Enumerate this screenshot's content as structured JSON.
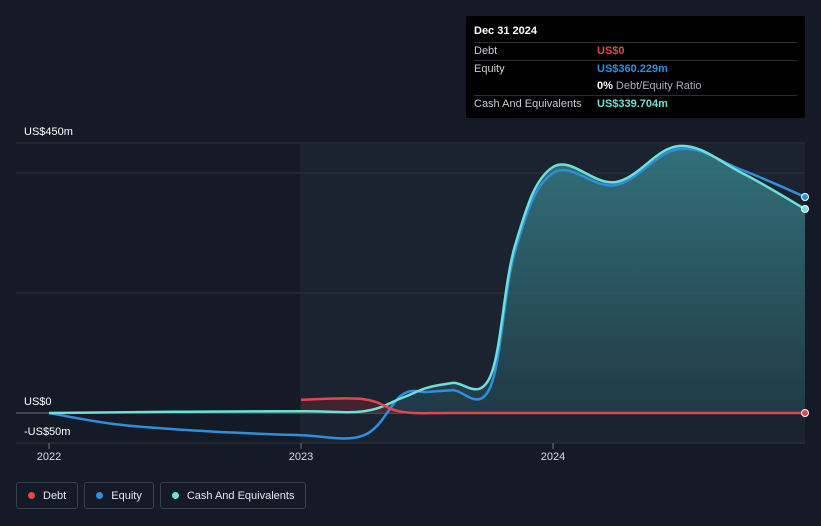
{
  "tooltip": {
    "date": "Dec 31 2024",
    "debt_label": "Debt",
    "debt_value": "US$0",
    "equity_label": "Equity",
    "equity_value": "US$360.229m",
    "ratio_pct": "0%",
    "ratio_label": "Debt/Equity Ratio",
    "cash_label": "Cash And Equivalents",
    "cash_value": "US$339.704m"
  },
  "legend": [
    {
      "label": "Debt",
      "color": "#e0484e"
    },
    {
      "label": "Equity",
      "color": "#2f8fdd"
    },
    {
      "label": "Cash And Equivalents",
      "color": "#6fe0d6"
    }
  ],
  "colors": {
    "debt": "#e0484e",
    "equity": "#2f8fdd",
    "cash": "#6fe0d6",
    "background": "#151b26"
  },
  "chart_data": {
    "type": "area",
    "ylabel_top": "US$450m",
    "ylabel_zero": "US$0",
    "ylabel_bottom": "-US$50m",
    "ylim": [
      -50,
      450
    ],
    "x_ticks": [
      "2022",
      "2023",
      "2024"
    ],
    "series": [
      {
        "name": "Debt",
        "x": [
          2023.0,
          2023.25,
          2023.4,
          2023.6,
          2024.0,
          2024.5,
          2025.0
        ],
        "values": [
          22,
          23,
          2,
          0,
          0,
          0,
          0
        ]
      },
      {
        "name": "Equity",
        "x": [
          2022.0,
          2022.25,
          2022.5,
          2022.75,
          2023.0,
          2023.25,
          2023.4,
          2023.5,
          2023.6,
          2023.75,
          2023.85,
          2024.0,
          2024.25,
          2024.5,
          2024.75,
          2025.0
        ],
        "values": [
          0,
          -18,
          -27,
          -33,
          -37,
          -37,
          30,
          35,
          38,
          42,
          270,
          400,
          380,
          440,
          405,
          360
        ]
      },
      {
        "name": "Cash And Equivalents",
        "x": [
          2022.0,
          2022.5,
          2023.0,
          2023.25,
          2023.4,
          2023.5,
          2023.6,
          2023.75,
          2023.85,
          2024.0,
          2024.25,
          2024.5,
          2024.75,
          2025.0
        ],
        "values": [
          0,
          2,
          3,
          3,
          25,
          42,
          50,
          60,
          280,
          410,
          385,
          445,
          400,
          340
        ]
      }
    ]
  }
}
